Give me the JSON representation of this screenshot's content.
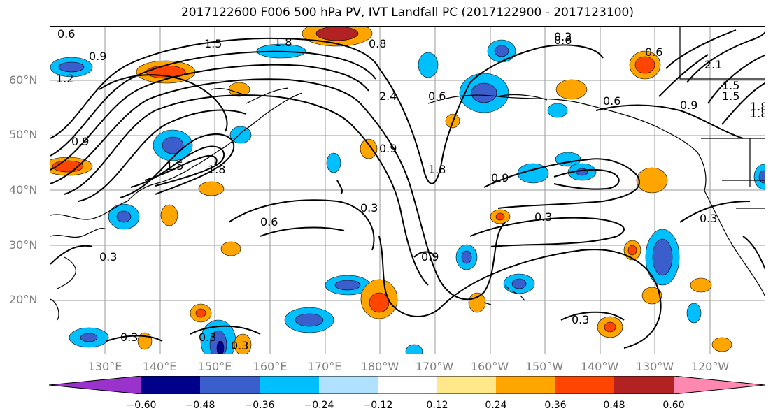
{
  "title": "2017122600 F006 500 hPa PV, IVT Landfall PC (2017122900 - 2017123100)",
  "lat_labels": [
    "60°N",
    "50°N",
    "40°N",
    "30°N",
    "20°N"
  ],
  "lon_labels": [
    "130°E",
    "140°E",
    "150°E",
    "160°E",
    "170°E",
    "180°W",
    "170°W",
    "160°W",
    "150°W",
    "140°W",
    "130°W",
    "120°W"
  ],
  "colorbar": {
    "ticks": [
      "−0.60",
      "−0.48",
      "−0.36",
      "−0.24",
      "−0.12",
      "0.12",
      "0.24",
      "0.36",
      "0.48",
      "0.60"
    ],
    "colors": [
      "#9933cc",
      "#00008b",
      "#3a5fcd",
      "#00bfff",
      "#b0e2ff",
      "#ffffff",
      "#ffe78a",
      "#ffa500",
      "#ff4500",
      "#b22222",
      "#ff88b0"
    ]
  },
  "contour_labels": [
    "0.6",
    "0.9",
    "1.2",
    "1.5",
    "1.8",
    "0.9",
    "1.5",
    "1.8",
    "2.4",
    "0.6",
    "0.9",
    "1.8",
    "0.3",
    "0.6",
    "0.3",
    "0.9",
    "0.9",
    "0.3",
    "0.6",
    "0.3",
    "0.3",
    "0.3",
    "0.3",
    "0.3",
    "0.6",
    "0.9",
    "1.5",
    "1.8",
    "2.1",
    "0.6",
    "0.8",
    "1.5",
    "1.8",
    "0.3"
  ]
}
